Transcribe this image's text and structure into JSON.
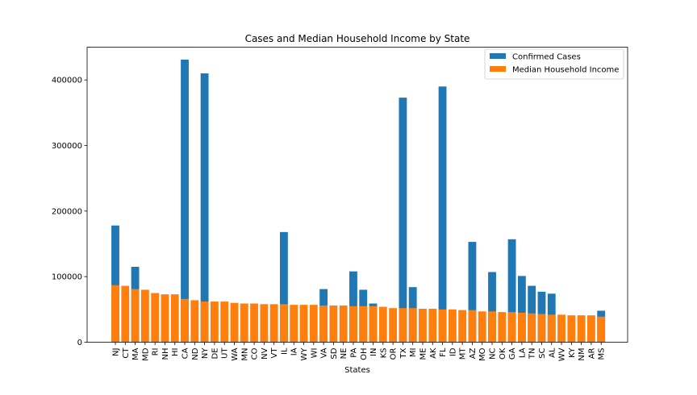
{
  "chart_data": {
    "type": "bar",
    "title": "Cases and Median Household Income by State",
    "xlabel": "States",
    "ylabel": "",
    "ylim": [
      0,
      450000
    ],
    "yticks": [
      0,
      100000,
      200000,
      300000,
      400000
    ],
    "ytick_labels": [
      "0",
      "100000",
      "200000",
      "300000",
      "400000"
    ],
    "grid": false,
    "legend_position": "top-right",
    "categories": [
      "NJ",
      "CT",
      "MA",
      "MD",
      "RI",
      "NH",
      "HI",
      "CA",
      "ND",
      "NY",
      "DE",
      "UT",
      "WA",
      "MN",
      "CO",
      "NV",
      "VT",
      "IL",
      "IA",
      "WY",
      "WI",
      "VA",
      "SD",
      "NE",
      "PA",
      "OH",
      "IN",
      "KS",
      "OR",
      "TX",
      "MI",
      "ME",
      "AK",
      "FL",
      "ID",
      "MT",
      "AZ",
      "MO",
      "NC",
      "OK",
      "GA",
      "LA",
      "TN",
      "SC",
      "AL",
      "WV",
      "KY",
      "NM",
      "AR",
      "MS"
    ],
    "series": [
      {
        "name": "Confirmed Cases",
        "color": "#1f77b4",
        "values": [
          178000,
          0,
          115000,
          0,
          0,
          0,
          0,
          431000,
          0,
          410000,
          0,
          0,
          0,
          0,
          0,
          0,
          0,
          168000,
          0,
          0,
          0,
          81000,
          0,
          0,
          108000,
          80000,
          59000,
          0,
          0,
          373000,
          84000,
          0,
          0,
          390000,
          0,
          0,
          153000,
          0,
          107000,
          0,
          157000,
          101000,
          86000,
          77000,
          74000,
          0,
          0,
          0,
          0,
          48000
        ]
      },
      {
        "name": "Median Household Income",
        "color": "#ff7f0e",
        "values": [
          87000,
          86000,
          81000,
          80000,
          75000,
          73000,
          73000,
          66000,
          64000,
          62000,
          62000,
          62000,
          60000,
          59000,
          59000,
          58000,
          58000,
          58000,
          57000,
          57000,
          57000,
          56000,
          56000,
          56000,
          55000,
          55000,
          55000,
          54000,
          52000,
          52000,
          52000,
          51000,
          51000,
          50000,
          50000,
          49000,
          49000,
          47000,
          47000,
          46000,
          46000,
          45000,
          44000,
          43000,
          42000,
          42000,
          41000,
          41000,
          41000,
          39000
        ]
      }
    ]
  }
}
